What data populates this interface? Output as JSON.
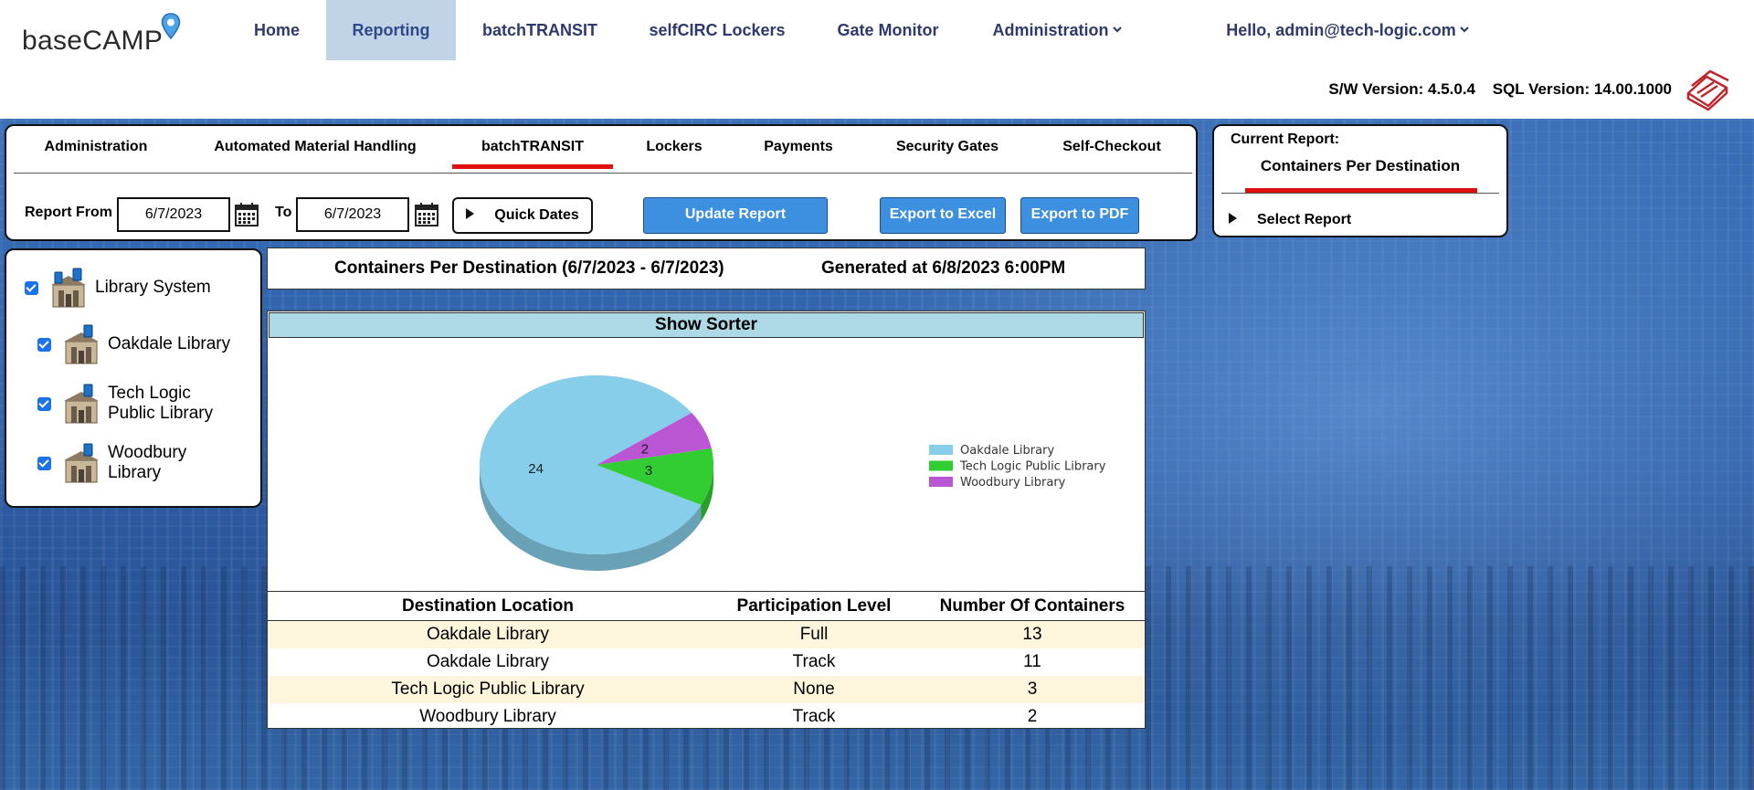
{
  "app": {
    "logo_text": "baseCAMP",
    "nav": [
      {
        "label": "Home"
      },
      {
        "label": "Reporting"
      },
      {
        "label": "batchTRANSIT"
      },
      {
        "label": "selfCIRC Lockers"
      },
      {
        "label": "Gate Monitor"
      },
      {
        "label": "Administration"
      }
    ],
    "user_greeting": "Hello, admin@tech-logic.com",
    "sw_version": "S/W Version: 4.5.0.4",
    "sql_version": "SQL Version: 14.00.1000"
  },
  "report_tabs": [
    {
      "label": "Administration"
    },
    {
      "label": "Automated Material Handling"
    },
    {
      "label": "batchTRANSIT"
    },
    {
      "label": "Lockers"
    },
    {
      "label": "Payments"
    },
    {
      "label": "Security Gates"
    },
    {
      "label": "Self-Checkout"
    }
  ],
  "filters": {
    "from_label": "Report From",
    "from_value": "6/7/2023",
    "to_label": "To",
    "to_value": "6/7/2023",
    "quick_dates_label": "Quick Dates",
    "update_label": "Update Report",
    "excel_label": "Export to Excel",
    "pdf_label": "Export to PDF"
  },
  "current_report": {
    "caption": "Current Report:",
    "name": "Containers Per Destination",
    "select_label": "Select Report"
  },
  "libraries": [
    {
      "name_line1": "Library System",
      "name_line2": "",
      "checked": true
    },
    {
      "name_line1": "Oakdale Library",
      "name_line2": "",
      "checked": true
    },
    {
      "name_line1": "Tech Logic",
      "name_line2": "Public Library",
      "checked": true
    },
    {
      "name_line1": "Woodbury",
      "name_line2": "Library",
      "checked": true
    }
  ],
  "report": {
    "title": "Containers Per Destination (6/7/2023 - 6/7/2023)",
    "generated": "Generated at 6/8/2023 6:00PM",
    "section_title": "Show Sorter"
  },
  "chart_data": {
    "type": "pie",
    "categories": [
      "Oakdale Library",
      "Tech Logic Public Library",
      "Woodbury Library"
    ],
    "values": [
      24,
      3,
      2
    ],
    "colors": [
      "#87ceeb",
      "#32cd32",
      "#ba55d3"
    ],
    "title": "",
    "legend": "right"
  },
  "table": {
    "headers": [
      "Destination Location",
      "Participation Level",
      "Number Of Containers"
    ],
    "rows": [
      {
        "destination": "Oakdale Library",
        "level": "Full",
        "count": "13"
      },
      {
        "destination": "Oakdale Library",
        "level": "Track",
        "count": "11"
      },
      {
        "destination": "Tech Logic Public Library",
        "level": "None",
        "count": "3"
      },
      {
        "destination": "Woodbury Library",
        "level": "Track",
        "count": "2"
      }
    ]
  },
  "icons": {
    "logo_pin": "location-pin-icon",
    "brand": "tech-logic-books-icon",
    "calendar": "calendar-icon",
    "building": "library-building-icon"
  }
}
